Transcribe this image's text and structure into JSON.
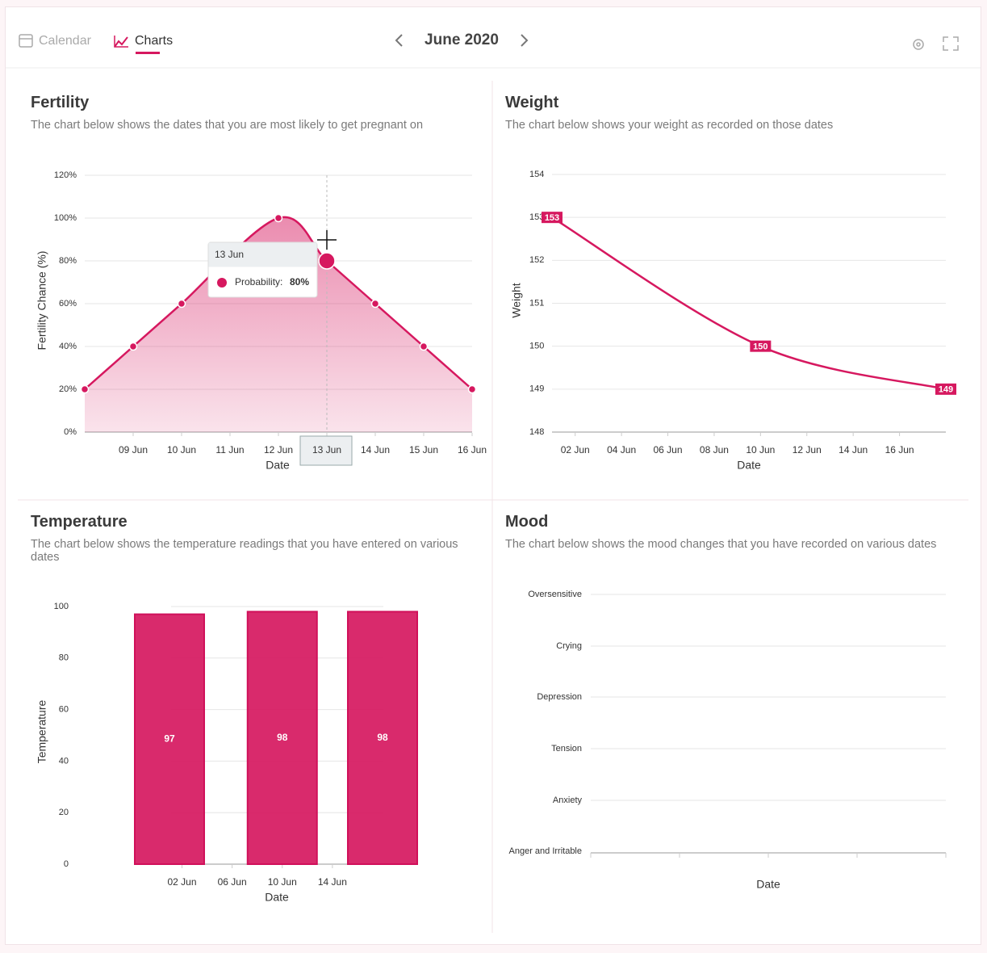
{
  "header": {
    "tabs": [
      "Calendar",
      "Charts"
    ],
    "month": "June 2020"
  },
  "chart_data": [
    {
      "type": "area",
      "title": "Fertility",
      "subtitle": "The chart below shows the dates that you are most likely to get pregnant on",
      "x": [
        8,
        9,
        10,
        12,
        13,
        14,
        15,
        16
      ],
      "values": [
        20,
        40,
        60,
        100,
        80,
        60,
        40,
        20
      ],
      "color": "#d6185f",
      "xlim": [
        8,
        16
      ],
      "xticks": [
        {
          "value": 9,
          "label": "09 Jun"
        },
        {
          "value": 10,
          "label": "10 Jun"
        },
        {
          "value": 11,
          "label": "11 Jun"
        },
        {
          "value": 12,
          "label": "12 Jun"
        },
        {
          "value": 13,
          "label": "13 Jun"
        },
        {
          "value": 14,
          "label": "14 Jun"
        },
        {
          "value": 15,
          "label": "15 Jun"
        },
        {
          "value": 16,
          "label": "16 Jun"
        }
      ],
      "ylim": [
        0,
        120
      ],
      "yticks": [
        {
          "value": 0,
          "label": "0%"
        },
        {
          "value": 20,
          "label": "20%"
        },
        {
          "value": 40,
          "label": "40%"
        },
        {
          "value": 60,
          "label": "60%"
        },
        {
          "value": 80,
          "label": "80%"
        },
        {
          "value": 100,
          "label": "100%"
        },
        {
          "value": 120,
          "label": "120%"
        }
      ],
      "ylabel": "Fertility Chance (%)",
      "xlabel": "Date",
      "grid": true,
      "tooltip": {
        "title": "13 Jun",
        "label": "Probability:",
        "value": "80%"
      }
    },
    {
      "type": "line",
      "title": "Weight",
      "subtitle": "The chart below shows your weight as recorded on those dates",
      "x": [
        1,
        10,
        18
      ],
      "values": [
        153,
        150,
        149
      ],
      "color": "#d6185f",
      "xlim": [
        1,
        18
      ],
      "xticks": [
        {
          "value": 2,
          "label": "02 Jun"
        },
        {
          "value": 4,
          "label": "04 Jun"
        },
        {
          "value": 6,
          "label": "06 Jun"
        },
        {
          "value": 8,
          "label": "08 Jun"
        },
        {
          "value": 10,
          "label": "10 Jun"
        },
        {
          "value": 12,
          "label": "12 Jun"
        },
        {
          "value": 14,
          "label": "14 Jun"
        },
        {
          "value": 16,
          "label": "16 Jun"
        }
      ],
      "ylim": [
        148,
        154
      ],
      "yticks": [
        148,
        149,
        150,
        151,
        152,
        153,
        154
      ],
      "ylabel": "Weight",
      "xlabel": "Date",
      "grid": true
    },
    {
      "type": "bar",
      "title": "Temperature",
      "subtitle": "The chart below shows the temperature readings that you have entered on various dates",
      "x": [
        1,
        10,
        18
      ],
      "values": [
        97,
        98,
        98
      ],
      "color": "#d6185f",
      "xlim": [
        1,
        18
      ],
      "xticks": [
        {
          "value": 2,
          "label": "02 Jun"
        },
        {
          "value": 6,
          "label": "06 Jun"
        },
        {
          "value": 10,
          "label": "10 Jun"
        },
        {
          "value": 14,
          "label": "14 Jun"
        }
      ],
      "ylim": [
        0,
        100
      ],
      "yticks": [
        0,
        20,
        40,
        60,
        80,
        100
      ],
      "ylabel": "Temperature",
      "xlabel": "Date",
      "grid": true
    },
    {
      "type": "mood",
      "title": "Mood",
      "subtitle": "The chart below shows the mood changes that you have recorded on various dates",
      "categories": [
        "Oversensitive",
        "Crying",
        "Depression",
        "Tension",
        "Anxiety",
        "Anger and Irritable"
      ],
      "xlabel": "Date",
      "grid": true
    }
  ]
}
